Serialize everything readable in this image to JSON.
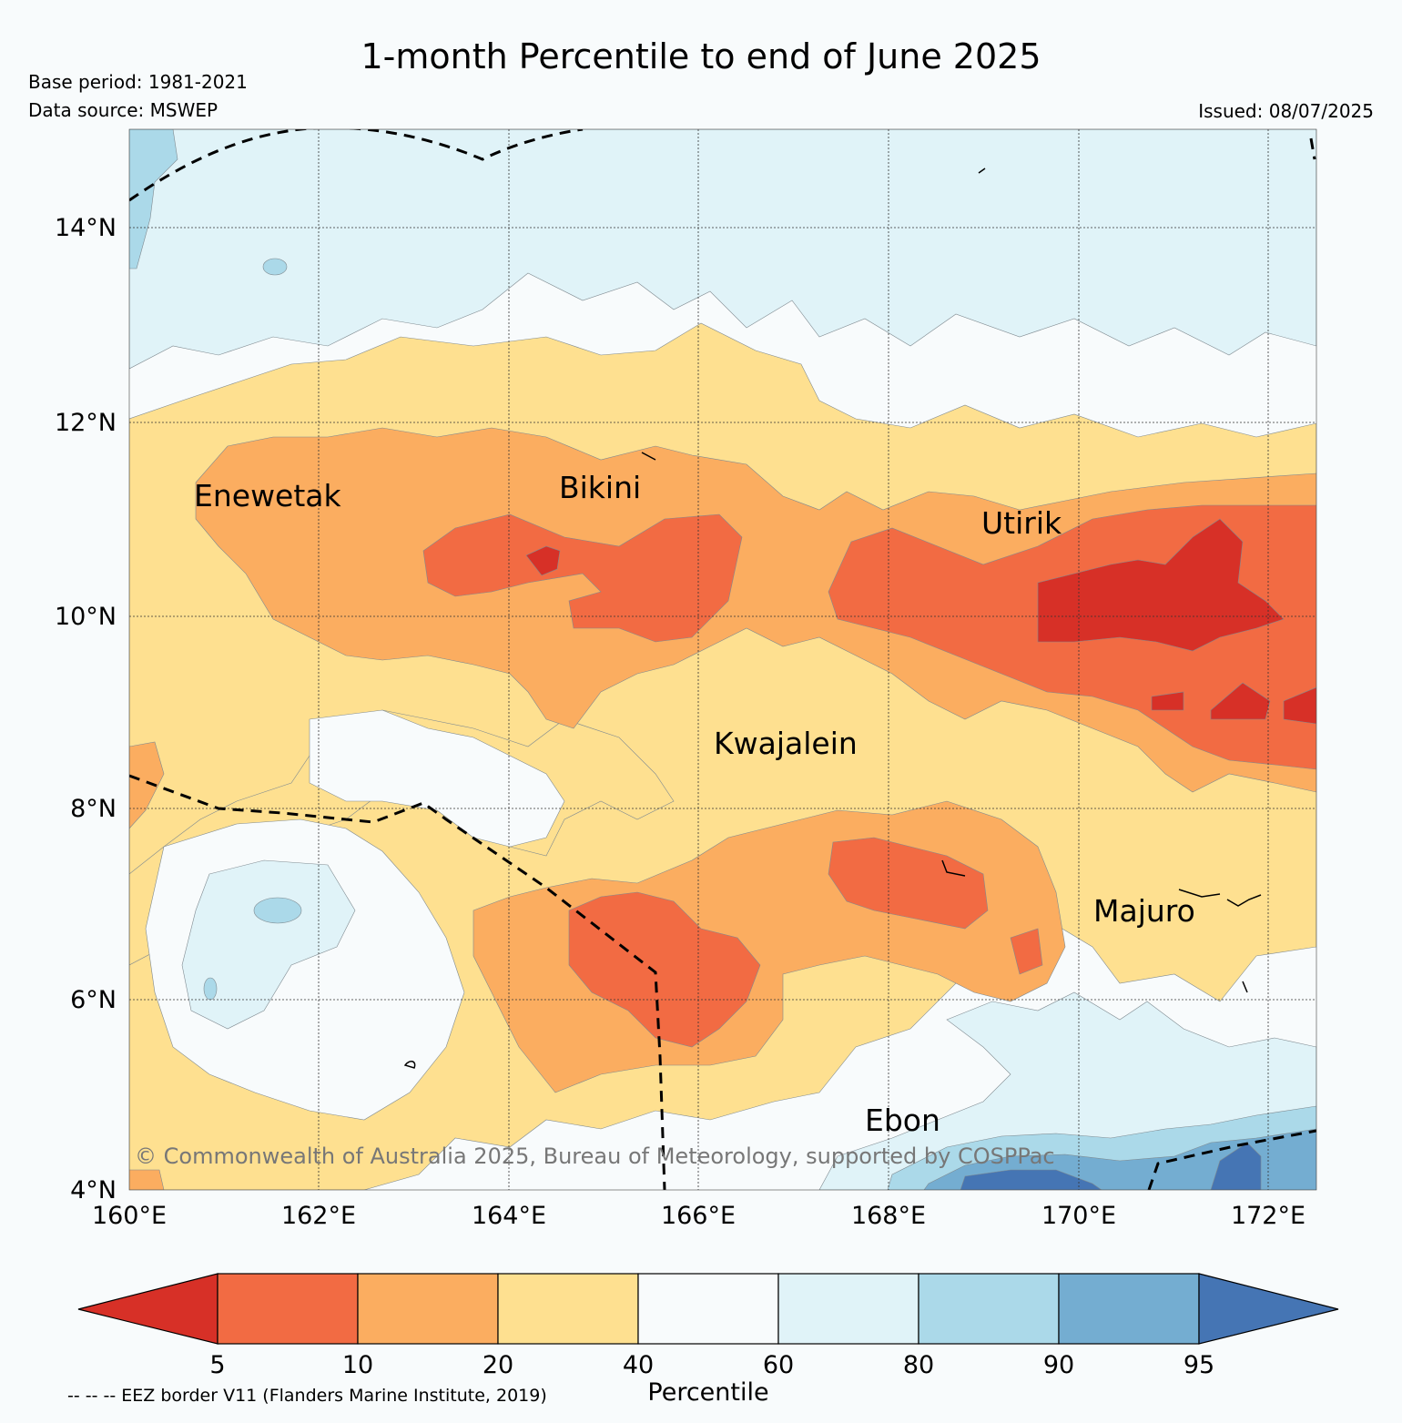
{
  "header": {
    "title": "1-month Percentile to end of June 2025",
    "base_period": "Base period: 1981-2021",
    "data_source": "Data source: MSWEP",
    "issued": "Issued: 08/07/2025"
  },
  "map": {
    "lon_range": [
      160,
      172.5
    ],
    "lat_range": [
      4,
      15
    ],
    "lon_ticks": [
      "160°E",
      "162°E",
      "164°E",
      "166°E",
      "168°E",
      "170°E",
      "172°E"
    ],
    "lat_ticks": [
      "4°N",
      "6°N",
      "8°N",
      "10°N",
      "12°N",
      "14°N"
    ],
    "places": [
      {
        "name": "Enewetak",
        "lon": 162.3,
        "lat": 11.3
      },
      {
        "name": "Bikini",
        "lon": 165.5,
        "lat": 11.5
      },
      {
        "name": "Utirik",
        "lon": 169.8,
        "lat": 11.0
      },
      {
        "name": "Kwajalein",
        "lon": 167.7,
        "lat": 8.8
      },
      {
        "name": "Majuro",
        "lon": 171.2,
        "lat": 7.1
      },
      {
        "name": "Ebon",
        "lon": 168.6,
        "lat": 4.6
      }
    ],
    "copyright": "© Commonwealth of Australia 2025, Bureau of Meteorology, supported by COSPPac"
  },
  "colorbar": {
    "label": "Percentile",
    "ticks": [
      "5",
      "10",
      "20",
      "40",
      "60",
      "80",
      "90",
      "95"
    ],
    "colors": [
      "#d73027",
      "#f26b43",
      "#fbad60",
      "#fee090",
      "#f8fbfc",
      "#e0f3f8",
      "#abd9e9",
      "#74add1",
      "#4575b4"
    ]
  },
  "footnote": "-- -- -- EEZ border V11 (Flanders Marine Institute, 2019)"
}
